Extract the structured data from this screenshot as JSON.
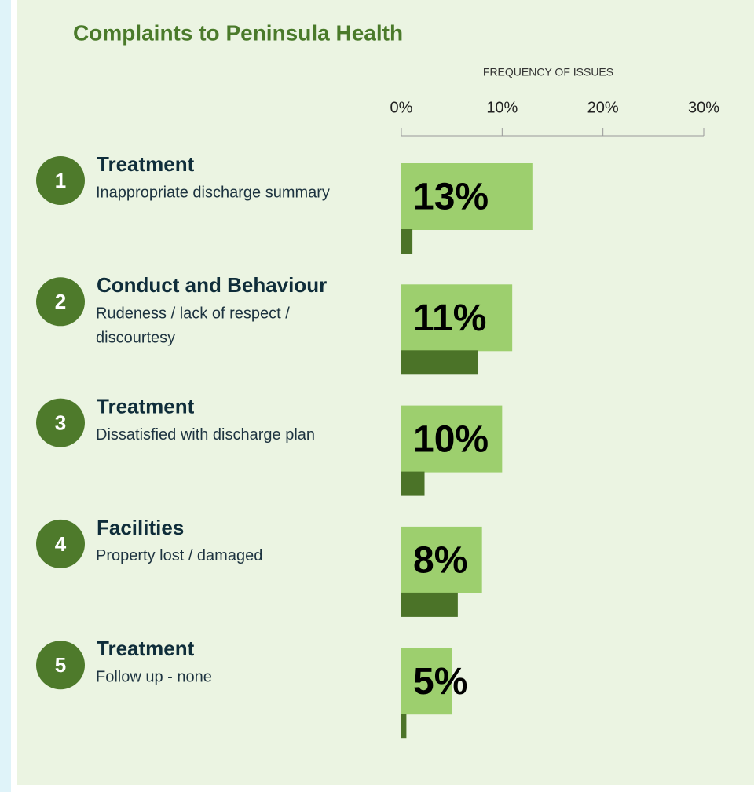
{
  "chart_data": {
    "type": "bar",
    "orientation": "horizontal",
    "title": "Complaints to Peninsula Health",
    "x_axis_label": "FREQUENCY  OF ISSUES",
    "xlim": [
      0,
      30
    ],
    "xticks": [
      {
        "value": 0,
        "label": "0%"
      },
      {
        "value": 10,
        "label": "10%"
      },
      {
        "value": 20,
        "label": "20%"
      },
      {
        "value": 30,
        "label": "30%"
      }
    ],
    "items": [
      {
        "rank": 1,
        "title": "Treatment",
        "subtitle": [
          "Inappropriate discharge summary"
        ]
      },
      {
        "rank": 2,
        "title": "Conduct and Behaviour",
        "subtitle": [
          "Rudeness / lack of respect /",
          "discourtesy"
        ]
      },
      {
        "rank": 3,
        "title": "Treatment",
        "subtitle": [
          "Dissatisfied with discharge plan"
        ]
      },
      {
        "rank": 4,
        "title": "Facilities",
        "subtitle": [
          "Property lost / damaged"
        ]
      },
      {
        "rank": 5,
        "title": "Treatment",
        "subtitle": [
          "Follow up - none"
        ]
      }
    ],
    "series": [
      {
        "color": "#9dcf6e",
        "values": [
          13,
          11,
          10,
          8,
          5
        ],
        "value_labels": [
          "13%",
          "11%",
          "10%",
          "8%",
          "5%"
        ]
      },
      {
        "color": "#4b7328",
        "values": [
          1.1,
          7.6,
          2.3,
          5.6,
          0.5
        ]
      }
    ]
  }
}
